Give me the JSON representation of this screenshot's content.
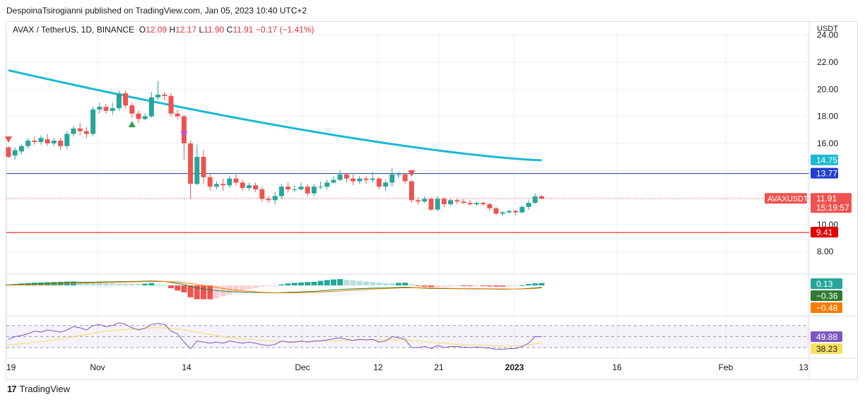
{
  "header": {
    "published_line": "DespoinaTsirogianni published on TradingView.com, Jan 05, 2023 10:40 UTC+2"
  },
  "legend": {
    "symbol": "AVAX / TetherUS, 1D, BINANCE",
    "open_label": "O",
    "open": "12.09",
    "high_label": "H",
    "high": "12.17",
    "low_label": "L",
    "low": "11.90",
    "close_label": "C",
    "close": "11.91",
    "change": "−0.17 (−1.41%)"
  },
  "footer": {
    "brand": "TradingView",
    "logo": "17"
  },
  "colors": {
    "up": "#26a69a",
    "down": "#ef5350",
    "ma": "#1bb9d3",
    "rsi": "#7e57c2",
    "rsi_ma": "#f6dc5e",
    "macd": "#2e7d32",
    "signal": "#f57c00",
    "support": "#e00000",
    "resistance": "#1a3a9c"
  },
  "chart_data": [
    {
      "type": "candlestick",
      "title": "AVAX / TetherUS, 1D, BINANCE",
      "y_unit": "USDT",
      "ylim": [
        7,
        24
      ],
      "y_ticks": [
        "24.00",
        "22.00",
        "20.00",
        "18.00",
        "16.00",
        "10.00",
        "8.00"
      ],
      "x_ticks": [
        "19",
        "Nov",
        "14",
        "Dec",
        "12",
        "21",
        "2023",
        "16",
        "Feb",
        "13"
      ],
      "candles": [
        [
          15.7,
          15.0,
          15.8,
          14.9
        ],
        [
          15.1,
          15.5,
          15.7,
          14.8
        ],
        [
          15.4,
          15.8,
          15.9,
          15.2
        ],
        [
          15.8,
          16.2,
          16.4,
          15.6
        ],
        [
          16.2,
          16.1,
          16.5,
          15.9
        ],
        [
          16.1,
          16.4,
          16.6,
          15.9
        ],
        [
          16.3,
          16.0,
          16.7,
          15.8
        ],
        [
          16.0,
          16.2,
          16.4,
          15.8
        ],
        [
          16.2,
          15.8,
          16.4,
          15.5
        ],
        [
          15.8,
          16.7,
          16.9,
          15.6
        ],
        [
          16.7,
          17.1,
          17.3,
          16.5
        ],
        [
          17.1,
          16.9,
          17.5,
          16.6
        ],
        [
          16.9,
          16.7,
          17.2,
          16.4
        ],
        [
          16.7,
          18.5,
          18.7,
          16.5
        ],
        [
          18.5,
          18.7,
          19.0,
          18.2
        ],
        [
          18.7,
          18.4,
          18.9,
          18.2
        ],
        [
          18.4,
          18.6,
          19.0,
          18.1
        ],
        [
          18.6,
          19.7,
          19.9,
          18.4
        ],
        [
          19.7,
          18.8,
          19.9,
          18.6
        ],
        [
          18.8,
          18.2,
          19.0,
          17.9
        ],
        [
          18.2,
          17.8,
          18.4,
          17.5
        ],
        [
          17.8,
          18.0,
          18.2,
          17.7
        ],
        [
          18.0,
          19.4,
          19.8,
          17.9
        ],
        [
          19.4,
          19.6,
          20.6,
          19.2
        ],
        [
          19.6,
          19.5,
          19.8,
          19.2
        ],
        [
          19.5,
          18.2,
          19.7,
          18.0
        ],
        [
          18.2,
          18.0,
          18.5,
          17.8
        ],
        [
          18.0,
          16.0,
          18.1,
          14.8
        ],
        [
          16.0,
          13.0,
          16.2,
          11.9
        ],
        [
          13.0,
          15.0,
          15.9,
          12.9
        ],
        [
          15.0,
          13.5,
          15.5,
          13.0
        ],
        [
          13.5,
          12.8,
          13.8,
          12.5
        ],
        [
          12.8,
          13.0,
          13.2,
          12.6
        ],
        [
          13.0,
          12.9,
          13.4,
          12.5
        ],
        [
          12.9,
          13.4,
          13.6,
          12.7
        ],
        [
          13.4,
          13.1,
          13.7,
          12.9
        ],
        [
          13.1,
          12.7,
          13.3,
          12.5
        ],
        [
          12.7,
          12.9,
          13.1,
          12.5
        ],
        [
          12.9,
          12.6,
          13.1,
          12.4
        ],
        [
          12.6,
          11.9,
          12.8,
          11.7
        ],
        [
          11.9,
          11.8,
          12.1,
          11.6
        ],
        [
          11.8,
          12.1,
          12.4,
          11.5
        ],
        [
          12.1,
          12.8,
          13.0,
          11.9
        ],
        [
          12.8,
          12.6,
          13.1,
          12.4
        ],
        [
          12.6,
          12.6,
          12.9,
          12.4
        ],
        [
          12.6,
          12.8,
          13.1,
          12.5
        ],
        [
          12.8,
          12.3,
          13.0,
          12.1
        ],
        [
          12.3,
          12.8,
          13.0,
          12.1
        ],
        [
          12.8,
          12.8,
          13.2,
          12.6
        ],
        [
          12.8,
          13.1,
          13.3,
          12.6
        ],
        [
          13.1,
          13.3,
          13.6,
          13.0
        ],
        [
          13.3,
          13.7,
          14.0,
          13.2
        ],
        [
          13.7,
          13.4,
          13.8,
          13.1
        ],
        [
          13.4,
          13.2,
          13.7,
          12.9
        ],
        [
          13.2,
          13.4,
          13.6,
          13.0
        ],
        [
          13.4,
          13.3,
          13.6,
          13.0
        ],
        [
          13.3,
          13.4,
          13.9,
          13.1
        ],
        [
          13.4,
          12.8,
          13.5,
          12.6
        ],
        [
          12.8,
          13.1,
          13.3,
          12.5
        ],
        [
          13.1,
          13.7,
          14.2,
          12.8
        ],
        [
          13.7,
          13.7,
          13.9,
          13.4
        ],
        [
          13.7,
          13.2,
          13.8,
          13.0
        ],
        [
          13.2,
          11.8,
          13.3,
          11.6
        ],
        [
          11.8,
          11.7,
          12.0,
          11.5
        ],
        [
          11.7,
          11.9,
          12.1,
          11.6
        ],
        [
          11.9,
          11.1,
          12.0,
          11.0
        ],
        [
          11.1,
          11.9,
          12.1,
          11.0
        ],
        [
          11.9,
          11.5,
          12.0,
          11.3
        ],
        [
          11.5,
          11.8,
          11.9,
          11.4
        ],
        [
          11.8,
          11.7,
          11.9,
          11.5
        ],
        [
          11.7,
          11.6,
          11.9,
          11.5
        ],
        [
          11.6,
          11.5,
          11.8,
          11.4
        ],
        [
          11.5,
          11.6,
          11.7,
          11.4
        ],
        [
          11.6,
          11.5,
          11.7,
          11.4
        ],
        [
          11.5,
          11.2,
          11.6,
          11.0
        ],
        [
          11.2,
          10.8,
          11.3,
          10.7
        ],
        [
          10.8,
          10.9,
          11.0,
          10.6
        ],
        [
          10.9,
          11.0,
          11.1,
          10.8
        ],
        [
          11.0,
          10.9,
          11.1,
          10.7
        ],
        [
          10.9,
          11.3,
          11.4,
          10.8
        ],
        [
          11.3,
          11.6,
          11.8,
          11.1
        ],
        [
          11.6,
          12.08,
          12.3,
          11.5
        ],
        [
          12.09,
          11.91,
          12.17,
          11.9
        ]
      ],
      "moving_average": {
        "start": 21.4,
        "end": 14.75
      },
      "horizontal_levels": [
        {
          "name": "resistance",
          "value": 13.77,
          "label": "13.77"
        },
        {
          "name": "support",
          "value": 9.41,
          "label": "9.41"
        }
      ],
      "last_price": {
        "symbol": "AVAXUSDT",
        "value": "11.91",
        "countdown": "15:19:57"
      },
      "ma_label": "14.75",
      "signals": [
        {
          "type": "sell",
          "index": 0,
          "price": 16.3
        },
        {
          "type": "buy",
          "index": 19,
          "price": 17.4
        },
        {
          "type": "sell",
          "index": 27,
          "price": 16.7
        },
        {
          "type": "sell",
          "index": 62,
          "price": 13.8
        }
      ]
    },
    {
      "type": "macd",
      "ylim": [
        -2,
        1
      ],
      "labels": {
        "histogram": "0.13",
        "macd": "−0.36",
        "signal": "−0.48"
      },
      "macd": [
        0.1,
        0.15,
        0.2,
        0.25,
        0.3,
        0.35,
        0.4,
        0.45,
        0.5,
        0.55,
        0.6,
        0.62,
        0.64,
        0.66,
        0.7,
        0.72,
        0.74,
        0.76,
        0.78,
        0.8,
        0.82,
        0.85,
        0.9,
        0.85,
        0.8,
        0.6,
        0.4,
        0.2,
        -0.2,
        -0.5,
        -0.7,
        -0.9,
        -1.05,
        -1.15,
        -1.25,
        -1.3,
        -1.35,
        -1.4,
        -1.42,
        -1.45,
        -1.48,
        -1.5,
        -1.45,
        -1.4,
        -1.35,
        -1.3,
        -1.25,
        -1.2,
        -1.1,
        -1.0,
        -0.9,
        -0.8,
        -0.75,
        -0.7,
        -0.65,
        -0.6,
        -0.55,
        -0.52,
        -0.5,
        -0.45,
        -0.4,
        -0.35,
        -0.4,
        -0.5,
        -0.55,
        -0.6,
        -0.62,
        -0.64,
        -0.65,
        -0.66,
        -0.67,
        -0.68,
        -0.69,
        -0.7,
        -0.72,
        -0.75,
        -0.76,
        -0.75,
        -0.72,
        -0.68,
        -0.6,
        -0.5,
        -0.36
      ],
      "signal": [
        0.05,
        0.08,
        0.1,
        0.13,
        0.16,
        0.2,
        0.24,
        0.28,
        0.32,
        0.36,
        0.4,
        0.44,
        0.48,
        0.52,
        0.56,
        0.6,
        0.63,
        0.66,
        0.69,
        0.72,
        0.74,
        0.76,
        0.78,
        0.79,
        0.78,
        0.74,
        0.66,
        0.55,
        0.4,
        0.2,
        0.0,
        -0.2,
        -0.4,
        -0.6,
        -0.8,
        -0.95,
        -1.1,
        -1.2,
        -1.3,
        -1.38,
        -1.44,
        -1.48,
        -1.5,
        -1.5,
        -1.48,
        -1.45,
        -1.42,
        -1.38,
        -1.33,
        -1.27,
        -1.2,
        -1.12,
        -1.04,
        -0.96,
        -0.88,
        -0.8,
        -0.73,
        -0.67,
        -0.62,
        -0.57,
        -0.53,
        -0.49,
        -0.47,
        -0.47,
        -0.49,
        -0.52,
        -0.55,
        -0.58,
        -0.6,
        -0.62,
        -0.63,
        -0.64,
        -0.65,
        -0.66,
        -0.67,
        -0.69,
        -0.7,
        -0.71,
        -0.71,
        -0.7,
        -0.67,
        -0.61,
        -0.48
      ]
    },
    {
      "type": "line",
      "name": "RSI",
      "ylim": [
        20,
        80
      ],
      "labels": {
        "rsi": "49.88",
        "rsi_ma": "38.23"
      },
      "rsi": [
        45,
        50,
        52,
        55,
        60,
        58,
        62,
        60,
        58,
        62,
        68,
        66,
        62,
        70,
        72,
        68,
        70,
        75,
        72,
        66,
        62,
        65,
        72,
        74,
        72,
        60,
        55,
        40,
        28,
        42,
        40,
        38,
        40,
        38,
        42,
        40,
        38,
        40,
        38,
        35,
        34,
        36,
        42,
        40,
        40,
        42,
        40,
        42,
        42,
        44,
        46,
        48,
        45,
        43,
        45,
        44,
        45,
        40,
        42,
        50,
        48,
        45,
        30,
        30,
        32,
        28,
        34,
        30,
        32,
        32,
        31,
        30,
        31,
        30,
        29,
        27,
        27,
        28,
        28,
        32,
        38,
        50,
        49.88
      ],
      "rsi_ma": [
        35,
        36,
        37,
        38,
        40,
        41,
        42,
        44,
        46,
        48,
        50,
        52,
        54,
        56,
        58,
        60,
        61,
        62,
        63,
        64,
        64,
        65,
        66,
        66,
        66,
        65,
        64,
        62,
        60,
        58,
        56,
        54,
        52,
        50,
        48,
        47,
        46,
        45,
        44,
        43,
        42,
        42,
        41,
        41,
        41,
        41,
        41,
        41,
        42,
        42,
        42,
        43,
        43,
        43,
        44,
        44,
        44,
        44,
        44,
        44,
        44,
        44,
        43,
        42,
        41,
        40,
        39,
        38,
        37,
        36,
        36,
        35,
        35,
        34,
        34,
        33,
        33,
        33,
        33,
        34,
        35,
        37,
        38.23
      ]
    }
  ]
}
